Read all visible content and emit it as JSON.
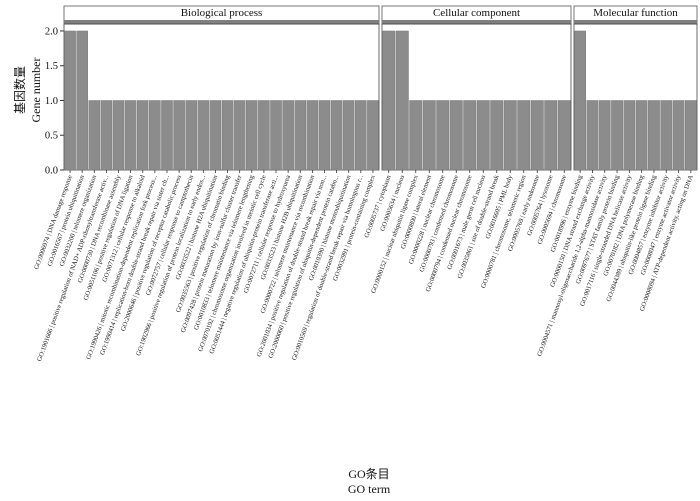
{
  "chart_data": {
    "type": "bar",
    "ylabel_cn": "基因数量",
    "ylabel": "Gene number",
    "xlabel_cn": "GO条目",
    "xlabel": "GO term",
    "ylim": [
      0,
      2.1
    ],
    "yticks": [
      "0.0",
      "0.5",
      "1.0",
      "1.5",
      "2.0"
    ],
    "grid": false,
    "legend": "none",
    "bar_color": "#8c8c8c",
    "panel_strip_color": "#7f7f7f",
    "panels": [
      {
        "name": "Biological process",
        "categories": [
          "GO:0006974 | DNA damage response",
          "GO:0016567 | protein ubiquitination",
          "GO:0032200 | telomere organization",
          "GO:1901666 | positive regulation of NAD+ ADP-ribosyltransferase activ...",
          "GO:0000730 | DNA recombinase assembly",
          "GO:0051106 | positive regulation of DNA ligation",
          "GO:0071312 | cellular response to alkaloid",
          "GO:1990426 | mitotic recombination-dependent replication fork process...",
          "GO:1990414 | replication-born double-strand break repair via sister ch...",
          "GO:2000646 | positive regulation of receptor catabolic process",
          "GO:0072757 | cellular response to camptothecin",
          "GO:1902966 | positive regulation of protein localization to early endos...",
          "GO:0033522 | histone H2A ubiquitination",
          "GO:0035563 | positive regulation of chromatin binding",
          "GO:0097428 | protein maturation by iron-sulfur cluster transfer",
          "GO:0010833 | telomere maintenance via telomere lengthening",
          "GO:0070192 | chromosome organization involved in meiotic cell cycle",
          "GO:0051444 | negative regulation of ubiquitin-protein transferase acti...",
          "GO:0072711 | cellular response to hydroxyurea",
          "GO:0033523 | histone H2B ubiquitination",
          "GO:0000722 | telomere maintenance via recombination",
          "GO:2001034 | positive regulation of double-strand break repair via non...",
          "GO:2000060 | positive regulation of ubiquitin-dependent protein catabo...",
          "GO:0010390 | histone monoubiquitination",
          "GO:0010569 | regulation of double-strand break repair via homologous r...",
          "GO:0032991 | protein-containing complex"
        ],
        "values": [
          2,
          2,
          1,
          1,
          1,
          1,
          1,
          1,
          1,
          1,
          1,
          1,
          1,
          1,
          1,
          1,
          1,
          1,
          1,
          1,
          1,
          1,
          1,
          1,
          1,
          1
        ]
      },
      {
        "name": "Cellular component",
        "categories": [
          "GO:0005737 | cytoplasm",
          "GO:0005634 | nucleus",
          "GO:0000152 | nuclear ubiquitin ligase complex",
          "GO:0000800 | lateral element",
          "GO:0000228 | nuclear chromosome",
          "GO:0000793 | condensed chromosome",
          "GO:0000794 | condensed nuclear chromosome",
          "GO:0001673 | male germ cell nucleus",
          "GO:0035861 | site of double-strand break",
          "GO:0016605 | PML body",
          "GO:0000781 | chromosome, telomeric region",
          "GO:0005769 | early endosome",
          "GO:0005764 | lysosome",
          "GO:0005694 | chromosome"
        ],
        "values": [
          2,
          2,
          1,
          1,
          1,
          1,
          1,
          1,
          1,
          1,
          1,
          1,
          1,
          1
        ]
      },
      {
        "name": "Molecular function",
        "categories": [
          "GO:0018996 | enzyme binding",
          "GO:0000150 | DNA strand exchange activity",
          "GO:0004571 | mannosyl-oligosaccharide 1,2-alpha-mannosidase activity",
          "GO:0097677 | STAT family protein binding",
          "GO:0017116 | single-stranded DNA helicase activity",
          "GO:0070182 | DNA polymerase binding",
          "GO:0044389 | ubiquitin-like protein ligase binding",
          "GO:0004857 | enzyme inhibitor activity",
          "GO:0008047 | enzyme activator activity",
          "GO:0008094 | ATP-dependent activity, acting on DNA"
        ],
        "values": [
          2,
          1,
          1,
          1,
          1,
          1,
          1,
          1,
          1,
          1
        ]
      }
    ]
  }
}
